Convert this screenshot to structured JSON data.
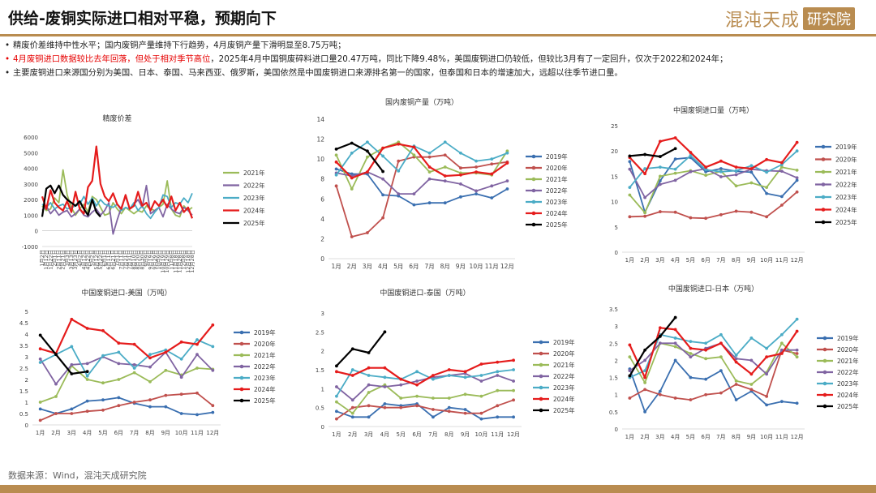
{
  "header": {
    "title": "供给-废铜实际进口相对平稳，预期向下",
    "logo_text": "混沌天成",
    "logo_box": "研究院",
    "accent": "#b98c50"
  },
  "bullets": [
    {
      "text": "精废价差维持中性水平；国内废铜产量维持下行趋势，4月废铜产量下滑明显至8.75万吨；",
      "red_part": ""
    },
    {
      "text": "，2025年4月中国铜废碎料进口量20.47万吨，同比下降9.48%，美国废铜进口仍较低，但较比3月有了一定回升，仅次于2022和2024年；",
      "red_part": "4月废铜进口数据较比去年回落，但处于相对季节高位"
    },
    {
      "text": "主要废铜进口来源国分别为美国、日本、泰国、马来西亚、俄罗斯，美国依然是中国废铜进口来源排名第一的国家，但泰国和日本的增速加大，远超以往季节进口量。",
      "red_part": ""
    }
  ],
  "footer": {
    "source": "数据来源：Wind，混沌天成研究院"
  },
  "colors": {
    "2019年": "#3a6fb0",
    "2020年": "#c0504d",
    "2021年": "#9bbb59",
    "2022年": "#8064a2",
    "2023年": "#4bacc6",
    "2024年": "#e51c1c",
    "2025年": "#000000"
  },
  "chart_data": [
    {
      "id": "spread",
      "type": "line",
      "title": "精废价差",
      "ylim": [
        -1000,
        6000
      ],
      "yticks": [
        -1000,
        0,
        1000,
        2000,
        3000,
        4000,
        5000,
        6000
      ],
      "xlabels": [
        "1月2日",
        "1月12日",
        "1月22日",
        "2月1日",
        "2月11日",
        "2月21日",
        "3月3日",
        "3月13日",
        "3月23日",
        "4月2日",
        "4月12日",
        "4月22日",
        "5月2日",
        "5月12日",
        "5月22日",
        "6月1日",
        "6月11日",
        "6月21日",
        "7月1日",
        "7月11日",
        "7月21日",
        "7月31日",
        "8月10日",
        "8月20日",
        "8月30日",
        "9月9日",
        "9月19日",
        "9月29日",
        "10月9日",
        "10月19日",
        "10月29日",
        "11月8日",
        "11月18日",
        "11月28日",
        "12月8日",
        "12月18日",
        "12月28日"
      ],
      "series": [
        {
          "name": "2021年",
          "values": [
            1600,
            1300,
            1400,
            2100,
            1800,
            3900,
            2300,
            1500,
            1000,
            1400,
            1700,
            1200,
            2200,
            2000,
            1500,
            1000,
            1100,
            1800,
            1400,
            1100,
            1500,
            1300,
            1100,
            1300,
            1200,
            1600,
            1400,
            1300,
            1500,
            1700,
            3200,
            1400,
            1000,
            900,
            1600,
            1300,
            1500
          ]
        },
        {
          "name": "2022年",
          "values": [
            1300,
            1600,
            1100,
            1400,
            1000,
            1200,
            1300,
            900,
            1100,
            1400,
            1000,
            900,
            1200,
            1400,
            1000,
            1300,
            1800,
            -200,
            700,
            1500,
            2200,
            1400,
            1700,
            2000,
            1500,
            2900,
            1100,
            1300,
            1500,
            900,
            1700,
            1400,
            1200,
            1100,
            1500,
            1300,
            1000
          ]
        },
        {
          "name": "2023年",
          "values": [
            1700,
            1500,
            1800,
            1400,
            1600,
            1700,
            1400,
            1500,
            1600,
            1700,
            2200,
            1700,
            2100,
            1600,
            2000,
            1700,
            1600,
            1500,
            1700,
            1300,
            1500,
            1400,
            1800,
            1300,
            1600,
            1100,
            800,
            1200,
            1500,
            2300,
            2200,
            1500,
            1800,
            1700,
            2100,
            1800,
            2400
          ]
        },
        {
          "name": "2024年",
          "values": [
            2200,
            1400,
            2600,
            1800,
            1500,
            1300,
            1900,
            1200,
            2500,
            1400,
            1100,
            2800,
            3200,
            5400,
            3000,
            2200,
            1900,
            2400,
            1700,
            1400,
            2300,
            1400,
            1600,
            2500,
            1600,
            1800,
            1300,
            1900,
            1600,
            2000,
            1500,
            2200,
            1300,
            1800,
            1200,
            1500,
            800
          ]
        },
        {
          "name": "2025年",
          "values": [
            900,
            2700,
            2900,
            2400,
            2900,
            2300,
            2000,
            1800,
            1600,
            1900,
            1400,
            1000,
            2000,
            1200,
            900,
            null,
            null,
            null,
            null,
            null,
            null,
            null,
            null,
            null,
            null,
            null,
            null,
            null,
            null,
            null,
            null,
            null,
            null,
            null,
            null,
            null,
            null
          ]
        }
      ]
    },
    {
      "id": "domestic",
      "type": "line",
      "title": "国内废铜产量（万吨）",
      "ylim": [
        0,
        14
      ],
      "yticks": [
        0,
        2,
        4,
        6,
        8,
        10,
        12,
        14
      ],
      "categories": [
        "1月",
        "2月",
        "3月",
        "4月",
        "5月",
        "6月",
        "7月",
        "8月",
        "9月",
        "10月",
        "11月",
        "12月"
      ],
      "series": [
        {
          "name": "2019年",
          "values": [
            9.0,
            8.5,
            8.5,
            6.4,
            6.3,
            5.4,
            5.6,
            5.6,
            6.2,
            6.5,
            6.1,
            7.0
          ]
        },
        {
          "name": "2020年",
          "values": [
            7.3,
            2.2,
            2.6,
            4.1,
            9.8,
            10.2,
            10.2,
            10.4,
            9.1,
            9.2,
            9.5,
            9.7
          ]
        },
        {
          "name": "2021年",
          "values": [
            10.4,
            7.0,
            10.2,
            11.1,
            11.7,
            10.4,
            8.7,
            9.2,
            8.6,
            8.6,
            8.4,
            10.8
          ]
        },
        {
          "name": "2022年",
          "values": [
            8.6,
            8.3,
            8.7,
            8.0,
            6.5,
            6.5,
            8.0,
            7.8,
            7.5,
            6.8,
            7.3,
            7.8
          ]
        },
        {
          "name": "2023年",
          "values": [
            8.4,
            10.6,
            11.7,
            10.3,
            8.8,
            11.3,
            10.6,
            11.7,
            10.6,
            9.8,
            10.0,
            10.6
          ]
        },
        {
          "name": "2024年",
          "values": [
            9.7,
            8.1,
            8.7,
            11.1,
            11.5,
            11.2,
            9.2,
            8.3,
            8.4,
            8.7,
            8.5,
            9.6
          ]
        },
        {
          "name": "2025年",
          "values": [
            11.0,
            11.6,
            10.8,
            8.75,
            null,
            null,
            null,
            null,
            null,
            null,
            null,
            null
          ]
        }
      ]
    },
    {
      "id": "imports",
      "type": "line",
      "title": "中国废铜进口量（万吨）",
      "ylim": [
        0,
        25
      ],
      "yticks": [
        0,
        5,
        10,
        15,
        20,
        25
      ],
      "categories": [
        "1月",
        "2月",
        "3月",
        "4月",
        "5月",
        "6月",
        "7月",
        "8月",
        "9月",
        "10月",
        "11月",
        "12月"
      ],
      "series": [
        {
          "name": "2019年",
          "values": [
            17.9,
            7.9,
            14.1,
            18.4,
            18.7,
            15.9,
            16.5,
            16.0,
            15.8,
            11.6,
            11.0,
            14.2
          ]
        },
        {
          "name": "2020年",
          "values": [
            7.0,
            7.1,
            8.0,
            7.9,
            6.8,
            6.7,
            7.4,
            8.1,
            7.9,
            7.0,
            9.3,
            11.9
          ]
        },
        {
          "name": "2021年",
          "values": [
            11.3,
            7.8,
            15.0,
            15.6,
            16.1,
            15.2,
            16.0,
            13.1,
            13.7,
            12.8,
            16.8,
            16.2
          ]
        },
        {
          "name": "2022年",
          "values": [
            16.4,
            10.8,
            13.4,
            14.2,
            15.9,
            16.5,
            14.9,
            15.3,
            16.4,
            16.1,
            16.0,
            14.7
          ]
        },
        {
          "name": "2023年",
          "values": [
            12.8,
            16.5,
            16.8,
            16.4,
            19.1,
            16.3,
            15.9,
            16.1,
            17.1,
            15.8,
            17.3,
            20.0
          ]
        },
        {
          "name": "2024年",
          "values": [
            18.7,
            15.5,
            21.9,
            22.6,
            19.7,
            16.8,
            18.0,
            16.8,
            16.5,
            18.3,
            17.7,
            21.7
          ]
        },
        {
          "name": "2025年",
          "values": [
            19.0,
            19.3,
            18.9,
            20.47,
            null,
            null,
            null,
            null,
            null,
            null,
            null,
            null
          ]
        }
      ]
    },
    {
      "id": "us",
      "type": "line",
      "title": "中国废铜进口-美国（万吨）",
      "ylim": [
        0,
        5
      ],
      "yticks": [
        0,
        0.5,
        1,
        1.5,
        2,
        2.5,
        3,
        3.5,
        4,
        4.5,
        5
      ],
      "categories": [
        "1月",
        "2月",
        "3月",
        "4月",
        "5月",
        "6月",
        "7月",
        "8月",
        "9月",
        "10月",
        "11月",
        "12月"
      ],
      "series": [
        {
          "name": "2019年",
          "values": [
            0.7,
            0.5,
            0.7,
            1.05,
            1.1,
            1.2,
            0.95,
            0.8,
            0.8,
            0.5,
            0.45,
            0.55
          ]
        },
        {
          "name": "2020年",
          "values": [
            0.2,
            0.5,
            0.5,
            0.6,
            0.65,
            0.85,
            1.0,
            1.1,
            1.3,
            1.35,
            1.4,
            0.85
          ]
        },
        {
          "name": "2021年",
          "values": [
            1.0,
            1.25,
            2.6,
            2.0,
            1.85,
            2.0,
            2.3,
            1.9,
            2.4,
            2.2,
            2.5,
            2.45
          ]
        },
        {
          "name": "2022年",
          "values": [
            2.9,
            1.8,
            2.65,
            2.7,
            3.0,
            2.7,
            2.65,
            2.55,
            3.2,
            2.1,
            3.1,
            2.4
          ]
        },
        {
          "name": "2023年",
          "values": [
            2.75,
            3.1,
            3.45,
            2.15,
            3.05,
            3.2,
            2.5,
            3.1,
            3.3,
            2.9,
            3.75,
            3.45
          ]
        },
        {
          "name": "2024年",
          "values": [
            3.35,
            3.15,
            4.65,
            4.25,
            4.15,
            3.6,
            3.55,
            2.95,
            3.2,
            3.65,
            3.55,
            4.4
          ]
        },
        {
          "name": "2025年",
          "values": [
            3.95,
            3.1,
            2.25,
            2.35,
            null,
            null,
            null,
            null,
            null,
            null,
            null,
            null
          ]
        }
      ]
    },
    {
      "id": "thailand",
      "type": "line",
      "title": "中国废铜进口-泰国（万吨）",
      "ylim": [
        0,
        3
      ],
      "yticks": [
        0,
        0.5,
        1,
        1.5,
        2,
        2.5,
        3
      ],
      "categories": [
        "1月",
        "2月",
        "3月",
        "4月",
        "5月",
        "6月",
        "7月",
        "8月",
        "9月",
        "10月",
        "11月",
        "12月"
      ],
      "series": [
        {
          "name": "2019年",
          "values": [
            0.4,
            0.25,
            0.25,
            0.6,
            0.55,
            0.6,
            0.25,
            0.5,
            0.45,
            0.2,
            0.25,
            0.25
          ]
        },
        {
          "name": "2020年",
          "values": [
            0.2,
            0.5,
            0.55,
            0.5,
            0.5,
            0.55,
            0.45,
            0.4,
            0.35,
            0.35,
            0.55,
            0.7
          ]
        },
        {
          "name": "2021年",
          "values": [
            0.65,
            0.35,
            0.9,
            1.1,
            0.75,
            0.8,
            0.75,
            0.75,
            0.85,
            0.8,
            0.95,
            0.95
          ]
        },
        {
          "name": "2022年",
          "values": [
            1.05,
            0.7,
            1.1,
            1.05,
            1.1,
            1.2,
            1.3,
            1.35,
            1.4,
            1.2,
            1.35,
            1.2
          ]
        },
        {
          "name": "2023年",
          "values": [
            0.8,
            1.5,
            1.35,
            1.3,
            1.25,
            1.45,
            1.25,
            1.35,
            1.3,
            1.35,
            1.45,
            1.5
          ]
        },
        {
          "name": "2024年",
          "values": [
            1.45,
            1.35,
            1.55,
            1.55,
            1.25,
            1.1,
            1.35,
            1.5,
            1.45,
            1.65,
            1.7,
            1.75
          ]
        },
        {
          "name": "2025年",
          "values": [
            1.6,
            2.05,
            1.95,
            2.5,
            null,
            null,
            null,
            null,
            null,
            null,
            null,
            null
          ]
        }
      ]
    },
    {
      "id": "japan",
      "type": "line",
      "title": "中国废铜进口-日本（万吨）",
      "ylim": [
        0,
        3.5
      ],
      "yticks": [
        0,
        0.5,
        1,
        1.5,
        2,
        2.5,
        3,
        3.5
      ],
      "categories": [
        "1月",
        "2月",
        "3月",
        "4月",
        "5月",
        "6月",
        "7月",
        "8月",
        "9月",
        "10月",
        "11月",
        "12月"
      ],
      "series": [
        {
          "name": "2019年",
          "values": [
            1.75,
            0.5,
            1.1,
            2.0,
            1.5,
            1.45,
            1.7,
            0.85,
            1.1,
            0.7,
            0.8,
            0.75
          ]
        },
        {
          "name": "2020年",
          "values": [
            0.9,
            1.15,
            1.0,
            0.9,
            0.85,
            1.0,
            1.05,
            1.3,
            1.15,
            0.95,
            2.3,
            2.2
          ]
        },
        {
          "name": "2021年",
          "values": [
            2.1,
            1.35,
            2.5,
            2.4,
            2.2,
            2.05,
            2.1,
            1.4,
            1.3,
            1.65,
            2.5,
            2.1
          ]
        },
        {
          "name": "2022年",
          "values": [
            1.7,
            2.0,
            2.5,
            2.5,
            2.1,
            2.35,
            2.5,
            2.05,
            2.0,
            1.6,
            2.3,
            2.3
          ]
        },
        {
          "name": "2023年",
          "values": [
            1.5,
            1.7,
            2.75,
            2.65,
            2.55,
            2.5,
            2.75,
            2.15,
            2.65,
            2.35,
            2.75,
            3.2
          ]
        },
        {
          "name": "2024年",
          "values": [
            2.45,
            1.5,
            2.95,
            2.9,
            2.35,
            2.3,
            2.5,
            1.95,
            1.6,
            2.1,
            2.2,
            2.85
          ]
        },
        {
          "name": "2025年",
          "values": [
            1.55,
            2.3,
            2.7,
            3.25,
            null,
            null,
            null,
            null,
            null,
            null,
            null,
            null
          ]
        }
      ]
    }
  ]
}
